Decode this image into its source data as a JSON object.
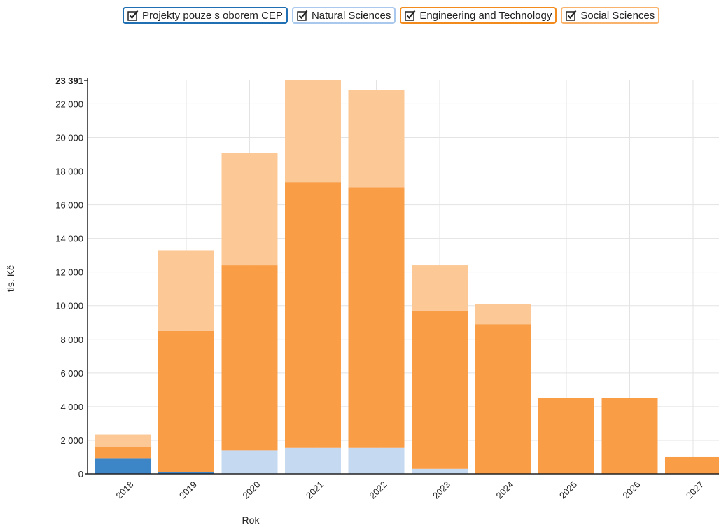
{
  "legend": {
    "items": [
      {
        "label": "Projekty pouze s oborem CEP",
        "color": "#1f6fb2",
        "checked": true
      },
      {
        "label": "Natural Sciences",
        "color": "#a8c8ee",
        "checked": true
      },
      {
        "label": "Engineering and Technology",
        "color": "#f28a1c",
        "checked": true
      },
      {
        "label": "Social Sciences",
        "color": "#f9b26b",
        "checked": true
      }
    ]
  },
  "chart_data": {
    "type": "bar",
    "stacked": true,
    "categories": [
      "2018",
      "2019",
      "2020",
      "2021",
      "2022",
      "2023",
      "2024",
      "2025",
      "2026",
      "2027"
    ],
    "series": [
      {
        "name": "Projekty pouze s oborem CEP",
        "color": "#3c85c6",
        "values": [
          900,
          100,
          0,
          0,
          0,
          0,
          0,
          0,
          0,
          0
        ]
      },
      {
        "name": "Natural Sciences",
        "color": "#c5d9f1",
        "values": [
          0,
          0,
          1400,
          1550,
          1550,
          300,
          0,
          0,
          0,
          0
        ]
      },
      {
        "name": "Engineering and Technology",
        "color": "#f99d47",
        "values": [
          720,
          8400,
          11000,
          15800,
          15500,
          9400,
          8900,
          4500,
          4500,
          1000
        ]
      },
      {
        "name": "Social Sciences",
        "color": "#fcc895",
        "values": [
          730,
          4800,
          6700,
          6041,
          5800,
          2700,
          1200,
          0,
          0,
          0
        ]
      }
    ],
    "xlabel": "Rok",
    "ylabel": "tis. Kč",
    "ylim": [
      0,
      23391
    ],
    "yticks": [
      "0",
      "2 000",
      "4 000",
      "6 000",
      "8 000",
      "10 000",
      "12 000",
      "14 000",
      "16 000",
      "18 000",
      "20 000",
      "22 000"
    ],
    "ymax_label": "23 391",
    "grid": true,
    "legend_position": "top-right"
  }
}
